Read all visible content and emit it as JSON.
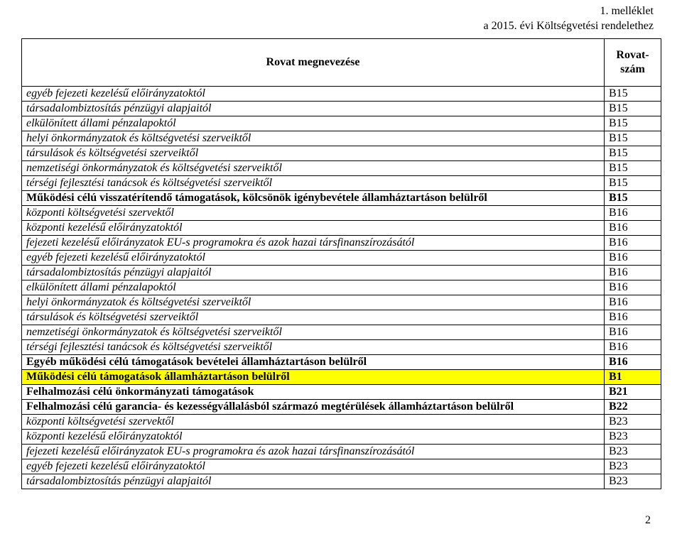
{
  "header": {
    "line1": "1. melléklet",
    "line2": "a 2015. évi Költségvetési rendelethez"
  },
  "table": {
    "header_name": "Rovat megnevezése",
    "header_code": "Rovat-szám",
    "rows": [
      {
        "name": "egyéb fejezeti kezelésű előirányzatoktól",
        "code": "B15",
        "italic": true
      },
      {
        "name": "társadalombiztosítás pénzügyi alapjaitól",
        "code": "B15",
        "italic": true
      },
      {
        "name": "elkülönített állami pénzalapoktól",
        "code": "B15",
        "italic": true
      },
      {
        "name": "helyi önkormányzatok és költségvetési szerveiktől",
        "code": "B15",
        "italic": true
      },
      {
        "name": "társulások és költségvetési szerveiktől",
        "code": "B15",
        "italic": true
      },
      {
        "name": "nemzetiségi önkormányzatok és költségvetési szerveiktől",
        "code": "B15",
        "italic": true
      },
      {
        "name": "térségi fejlesztési tanácsok és költségvetési szerveiktől",
        "code": "B15",
        "italic": true
      },
      {
        "name": "Működési célú visszatérítendő támogatások, kölcsönök igénybevétele államháztartáson belülről",
        "code": "B15",
        "bold": true
      },
      {
        "name": "központi költségvetési szervektől",
        "code": "B16",
        "italic": true
      },
      {
        "name": "központi kezelésű előirányzatoktól",
        "code": "B16",
        "italic": true
      },
      {
        "name": "fejezeti kezelésű előirányzatok EU-s programokra és azok hazai társfinanszírozásától",
        "code": "B16",
        "italic": true
      },
      {
        "name": "egyéb fejezeti kezelésű előirányzatoktól",
        "code": "B16",
        "italic": true
      },
      {
        "name": "társadalombiztosítás pénzügyi alapjaitól",
        "code": "B16",
        "italic": true
      },
      {
        "name": "elkülönített állami pénzalapoktól",
        "code": "B16",
        "italic": true
      },
      {
        "name": "helyi önkormányzatok és költségvetési szerveiktől",
        "code": "B16",
        "italic": true
      },
      {
        "name": "társulások és költségvetési szerveiktől",
        "code": "B16",
        "italic": true
      },
      {
        "name": "nemzetiségi önkormányzatok és költségvetési szerveiktől",
        "code": "B16",
        "italic": true
      },
      {
        "name": "térségi fejlesztési tanácsok és költségvetési szerveiktől",
        "code": "B16",
        "italic": true
      },
      {
        "name": "Egyéb működési célú támogatások bevételei államháztartáson belülről",
        "code": "B16",
        "bold": true
      },
      {
        "name": "Működési célú támogatások államháztartáson belülről",
        "code": "B1",
        "bold": true,
        "hl": true
      },
      {
        "name": "Felhalmozási célú önkormányzati támogatások",
        "code": "B21",
        "bold": true
      },
      {
        "name": "Felhalmozási célú garancia- és kezességvállalásból származó megtérülések államháztartáson belülről",
        "code": "B22",
        "bold": true
      },
      {
        "name": "központi költségvetési szervektől",
        "code": "B23",
        "italic": true
      },
      {
        "name": "központi kezelésű előirányzatoktól",
        "code": "B23",
        "italic": true
      },
      {
        "name": "fejezeti kezelésű előirányzatok EU-s programokra és azok hazai társfinanszírozásától",
        "code": "B23",
        "italic": true
      },
      {
        "name": "egyéb fejezeti kezelésű előirányzatoktól",
        "code": "B23",
        "italic": true
      },
      {
        "name": "társadalombiztosítás pénzügyi alapjaitól",
        "code": "B23",
        "italic": true
      }
    ]
  },
  "page_number": "2",
  "colors": {
    "highlight": "#ffff00",
    "border": "#000000",
    "bg": "#ffffff",
    "text": "#000000"
  },
  "fonts": {
    "family": "Times New Roman",
    "size_pt": 12
  }
}
